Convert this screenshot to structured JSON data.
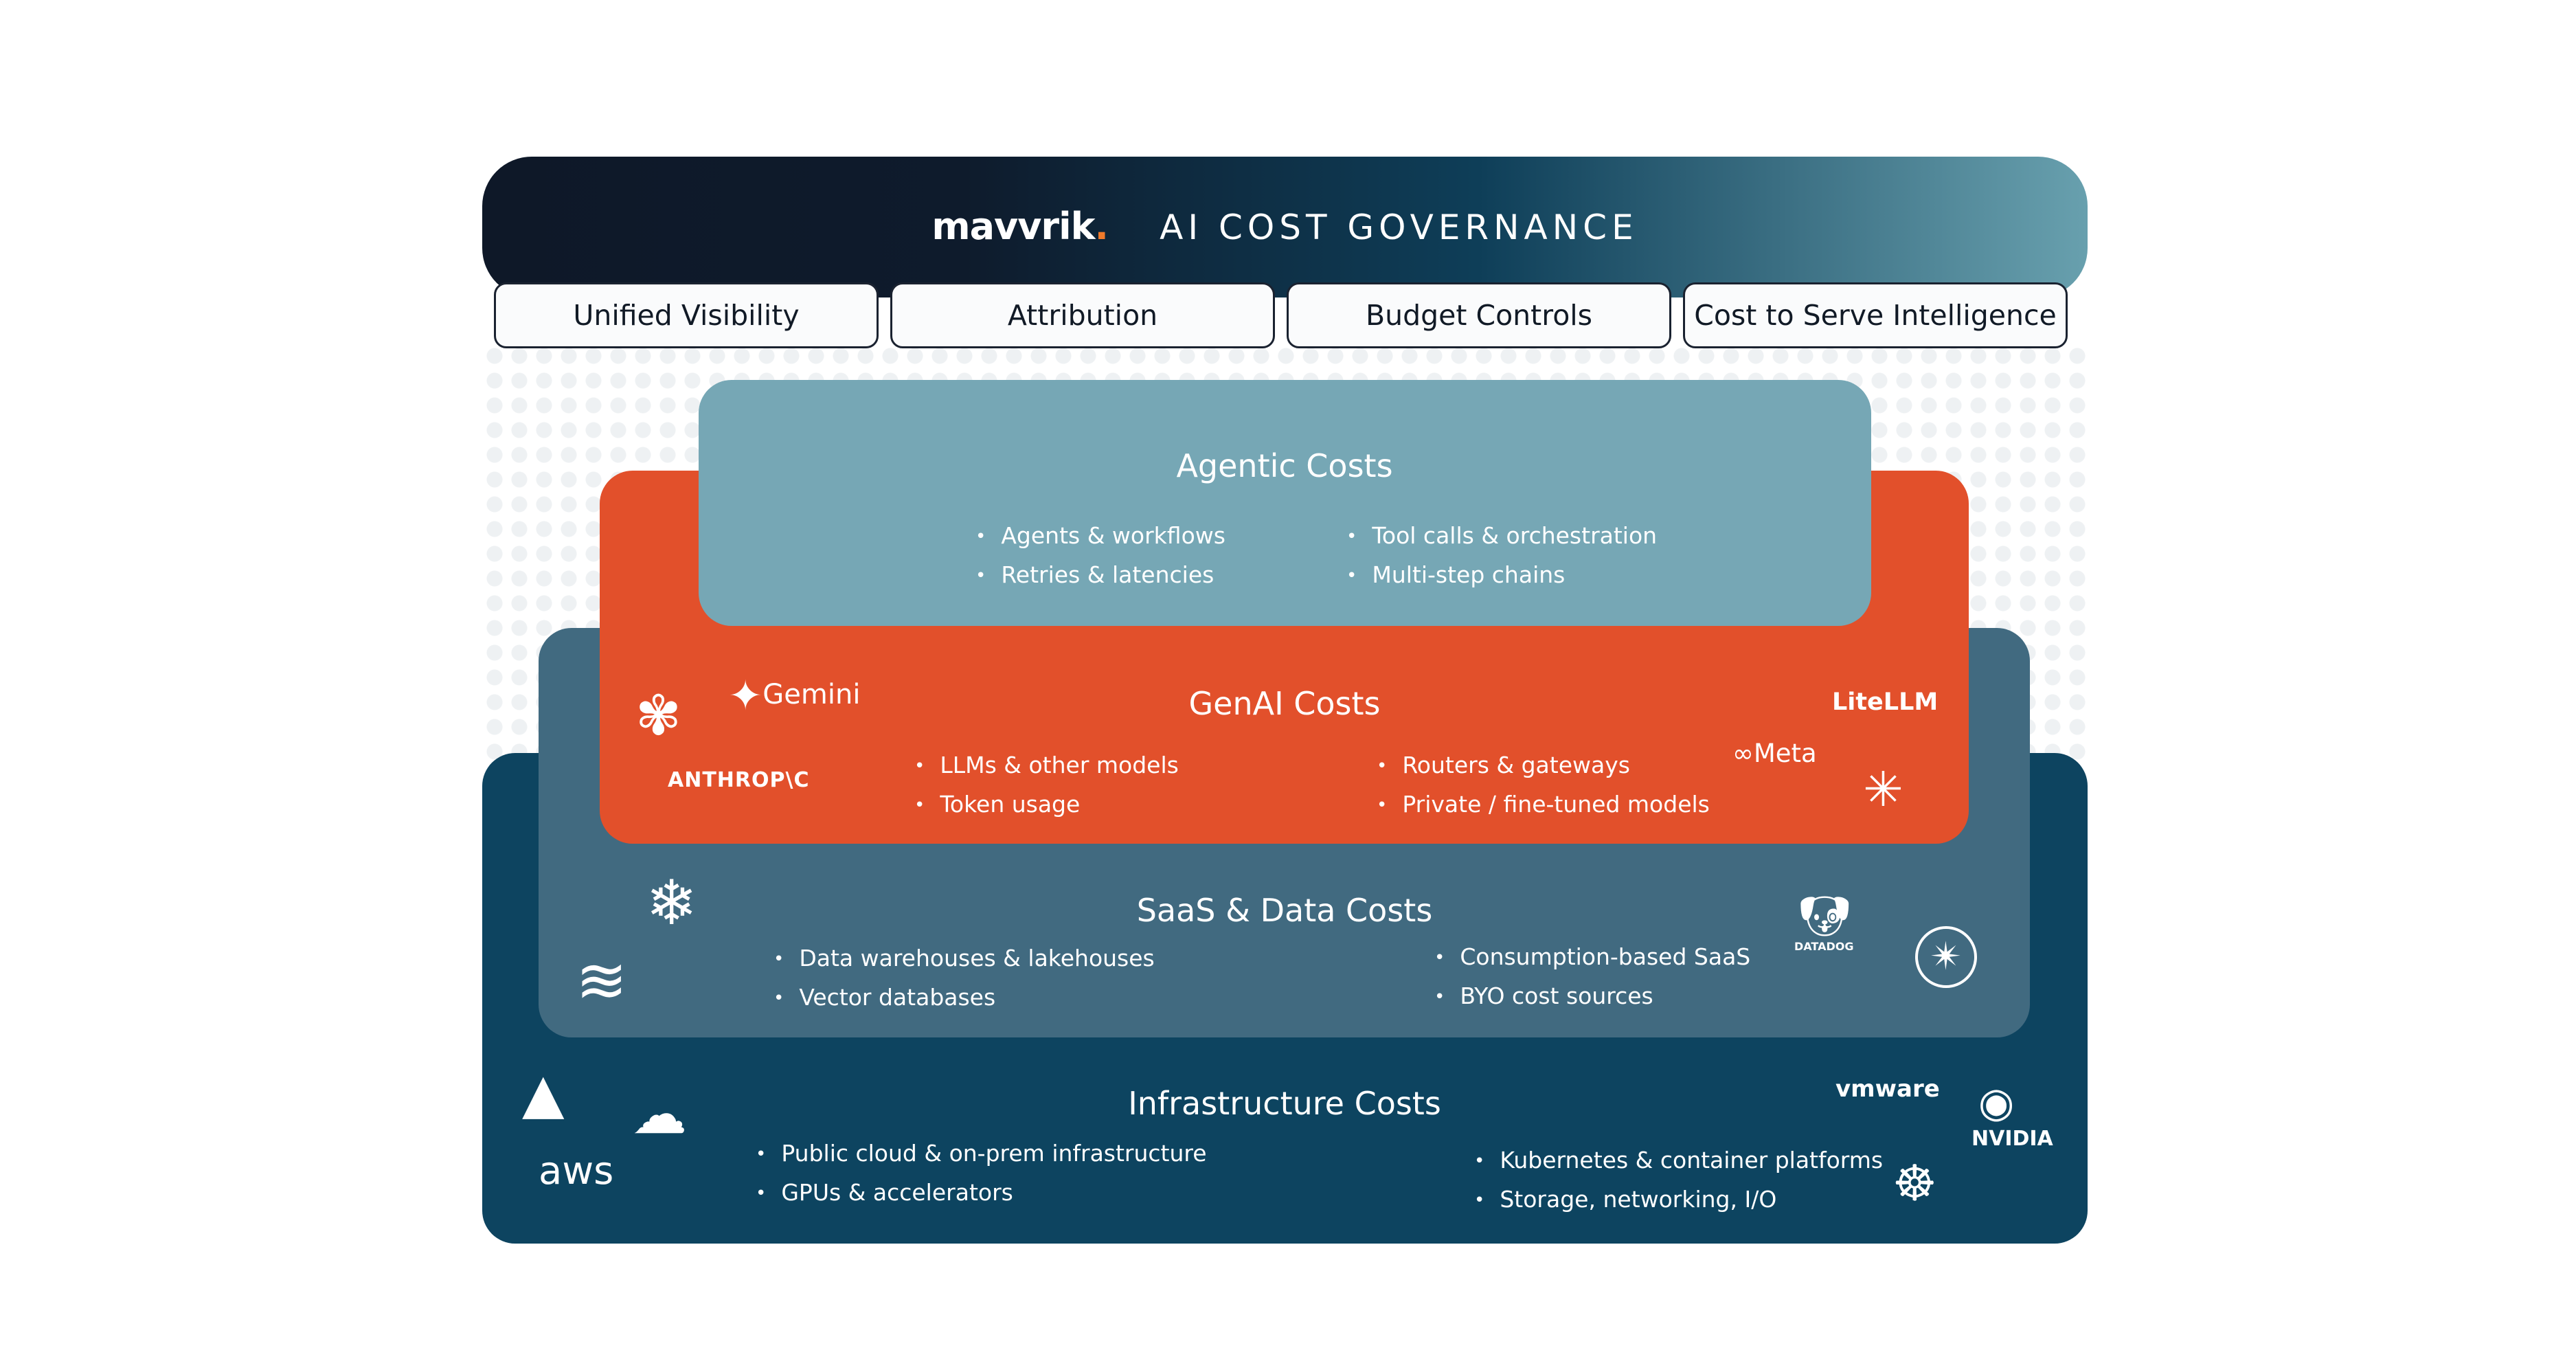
{
  "header": {
    "brand": "mavvrik",
    "brand_dot": ".",
    "title": "AI COST GOVERNANCE"
  },
  "tabs": [
    {
      "label": "Unified Visibility"
    },
    {
      "label": "Attribution"
    },
    {
      "label": "Budget Controls"
    },
    {
      "label": "Cost to Serve Intelligence"
    }
  ],
  "layers": {
    "agentic": {
      "title": "Agentic Costs",
      "left": [
        "Agents & workflows",
        "Retries & latencies"
      ],
      "right": [
        "Tool calls & orchestration",
        "Multi-step chains"
      ],
      "color": "#76a7b5"
    },
    "genai": {
      "title": "GenAI Costs",
      "left": [
        "LLMs & other models",
        "Token usage"
      ],
      "right": [
        "Routers & gateways",
        "Private / fine-tuned models"
      ],
      "color": "#e2502b",
      "logos": {
        "gemini": "Gemini",
        "anthropic": "ANTHROP\\C",
        "litellm": "LiteLLM",
        "meta": "Meta"
      }
    },
    "saas": {
      "title": "SaaS & Data Costs",
      "left": [
        "Data warehouses & lakehouses",
        "Vector databases"
      ],
      "right": [
        "Consumption-based SaaS",
        "BYO cost sources"
      ],
      "color": "#416a80",
      "logos": {
        "datadog": "DATADOG"
      }
    },
    "infra": {
      "title": "Infrastructure Costs",
      "left": [
        "Public cloud & on-prem infrastructure",
        "GPUs & accelerators"
      ],
      "right": [
        "Kubernetes & container platforms",
        "Storage, networking, I/O"
      ],
      "color": "#0d4460",
      "logos": {
        "aws": "aws",
        "vmware": "vmware",
        "nvidia": "NVIDIA"
      }
    }
  }
}
